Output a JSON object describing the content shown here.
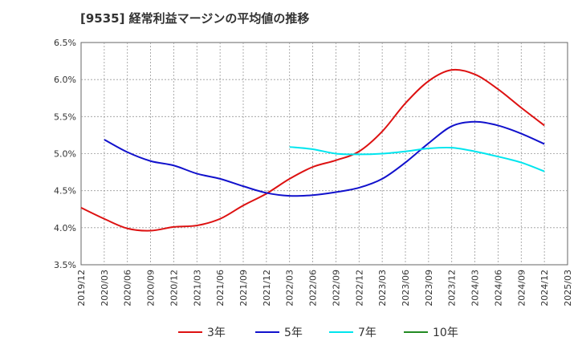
{
  "chart_data": {
    "type": "line",
    "title": "[9535]  経常利益マージンの平均値の推移",
    "ylim": [
      3.5,
      6.5
    ],
    "yticks": [
      "6.5%",
      "6.0%",
      "5.5%",
      "5.0%",
      "4.5%",
      "4.0%",
      "3.5%"
    ],
    "ytick_values": [
      6.5,
      6.0,
      5.5,
      5.0,
      4.5,
      4.0,
      3.5
    ],
    "xticks": [
      "2019/12",
      "2020/03",
      "2020/06",
      "2020/09",
      "2020/12",
      "2021/03",
      "2021/06",
      "2021/09",
      "2021/12",
      "2022/03",
      "2022/06",
      "2022/09",
      "2022/12",
      "2023/03",
      "2023/06",
      "2023/09",
      "2023/12",
      "2024/03",
      "2024/06",
      "2024/09",
      "2024/12",
      "2025/03"
    ],
    "grid": true,
    "legend_position": "bottom",
    "series": [
      {
        "name": "3年",
        "color": "#dd1111",
        "x": [
          "2019/12",
          "2020/03",
          "2020/06",
          "2020/09",
          "2020/12",
          "2021/03",
          "2021/06",
          "2021/09",
          "2021/12",
          "2022/03",
          "2022/06",
          "2022/09",
          "2022/12",
          "2023/03",
          "2023/06",
          "2023/09",
          "2023/12",
          "2024/03",
          "2024/06",
          "2024/09",
          "2024/12"
        ],
        "values": [
          4.27,
          4.12,
          3.99,
          3.96,
          4.01,
          4.03,
          4.12,
          4.3,
          4.46,
          4.66,
          4.82,
          4.91,
          5.03,
          5.3,
          5.68,
          5.98,
          6.13,
          6.07,
          5.87,
          5.62,
          5.38
        ]
      },
      {
        "name": "5年",
        "color": "#1111cc",
        "x": [
          "2020/03",
          "2020/06",
          "2020/09",
          "2020/12",
          "2021/03",
          "2021/06",
          "2021/09",
          "2021/12",
          "2022/03",
          "2022/06",
          "2022/09",
          "2022/12",
          "2023/03",
          "2023/06",
          "2023/09",
          "2023/12",
          "2024/03",
          "2024/06",
          "2024/09",
          "2024/12"
        ],
        "values": [
          5.19,
          5.02,
          4.9,
          4.84,
          4.73,
          4.66,
          4.56,
          4.47,
          4.43,
          4.44,
          4.48,
          4.54,
          4.66,
          4.88,
          5.14,
          5.37,
          5.43,
          5.38,
          5.27,
          5.13
        ]
      },
      {
        "name": "7年",
        "color": "#00e5ee",
        "x": [
          "2022/03",
          "2022/06",
          "2022/09",
          "2022/12",
          "2023/03",
          "2023/06",
          "2023/09",
          "2023/12",
          "2024/03",
          "2024/06",
          "2024/09",
          "2024/12"
        ],
        "values": [
          5.09,
          5.06,
          5.0,
          4.99,
          5.0,
          5.03,
          5.07,
          5.08,
          5.03,
          4.96,
          4.88,
          4.76
        ]
      },
      {
        "name": "10年",
        "color": "#228b22",
        "x": [],
        "values": []
      }
    ]
  }
}
